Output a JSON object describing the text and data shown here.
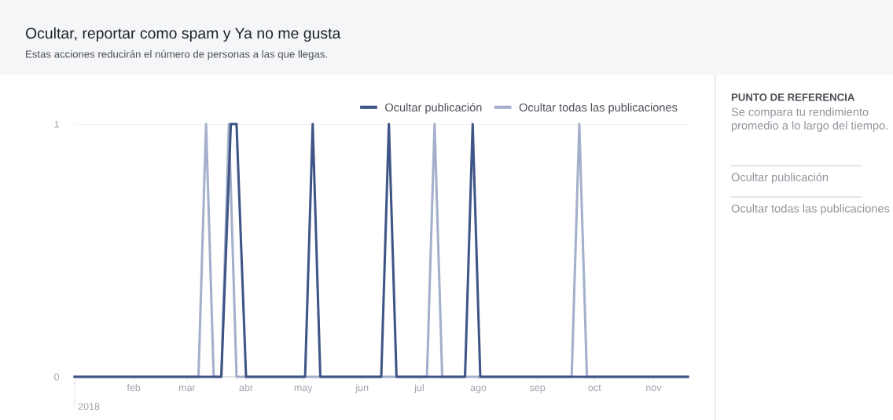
{
  "chart_data": [
    {
      "type": "line",
      "title": "Ocultar, reportar como spam y Ya no me gusta",
      "subtitle": "Estas acciones reducirán el número de personas a las que llegas.",
      "xlim": [
        "2018-01-01",
        "2018-11-19"
      ],
      "annotations": [
        {
          "text": "2018",
          "x": "2018-01-01",
          "y": 0
        }
      ],
      "xticks": [
        {
          "value": "2018-02-01",
          "label": "feb"
        },
        {
          "value": "2018-03-01",
          "label": "mar"
        },
        {
          "value": "2018-04-01",
          "label": "abr"
        },
        {
          "value": "2018-05-01",
          "label": "may"
        },
        {
          "value": "2018-06-01",
          "label": "jun"
        },
        {
          "value": "2018-07-01",
          "label": "jul"
        },
        {
          "value": "2018-08-01",
          "label": "ago"
        },
        {
          "value": "2018-09-01",
          "label": "sep"
        },
        {
          "value": "2018-10-01",
          "label": "oct"
        },
        {
          "value": "2018-11-01",
          "label": "nov"
        }
      ],
      "ylim": [
        0,
        1
      ],
      "yticks": [
        0,
        1
      ],
      "grid": "y",
      "legend": "top right",
      "marker": "none",
      "line_style": "solid",
      "series": [
        {
          "name": "Ocultar todas las publicaciones",
          "color": "#a4b0cb",
          "x": [
            "2018-01-01",
            "2018-03-07",
            "2018-03-11",
            "2018-03-15",
            "2018-03-19",
            "2018-03-23",
            "2018-03-27",
            "2018-07-05",
            "2018-07-09",
            "2018-07-13",
            "2018-09-19",
            "2018-09-23",
            "2018-09-27",
            "2018-11-19"
          ],
          "values": [
            0,
            0,
            1,
            0,
            0,
            1,
            0,
            0,
            1,
            0,
            0,
            1,
            0,
            0
          ]
        },
        {
          "name": "Ocultar publicación",
          "color": "#3f5586",
          "x": [
            "2018-01-01",
            "2018-03-19",
            "2018-03-24",
            "2018-03-27",
            "2018-04-01",
            "2018-05-02",
            "2018-05-06",
            "2018-05-10",
            "2018-06-11",
            "2018-06-15",
            "2018-06-19",
            "2018-07-25",
            "2018-07-29",
            "2018-08-02",
            "2018-11-19"
          ],
          "values": [
            0,
            0,
            1,
            1,
            0,
            0,
            1,
            0,
            0,
            1,
            0,
            0,
            1,
            0,
            0
          ]
        }
      ]
    },
    {
      "type": "other",
      "title": "PUNTO DE REFERENCIA",
      "annotations": [
        "Se compara tu rendimiento promedio a lo largo del tiempo.",
        "Ocultar publicación",
        "Ocultar todas las publicaciones"
      ]
    }
  ]
}
